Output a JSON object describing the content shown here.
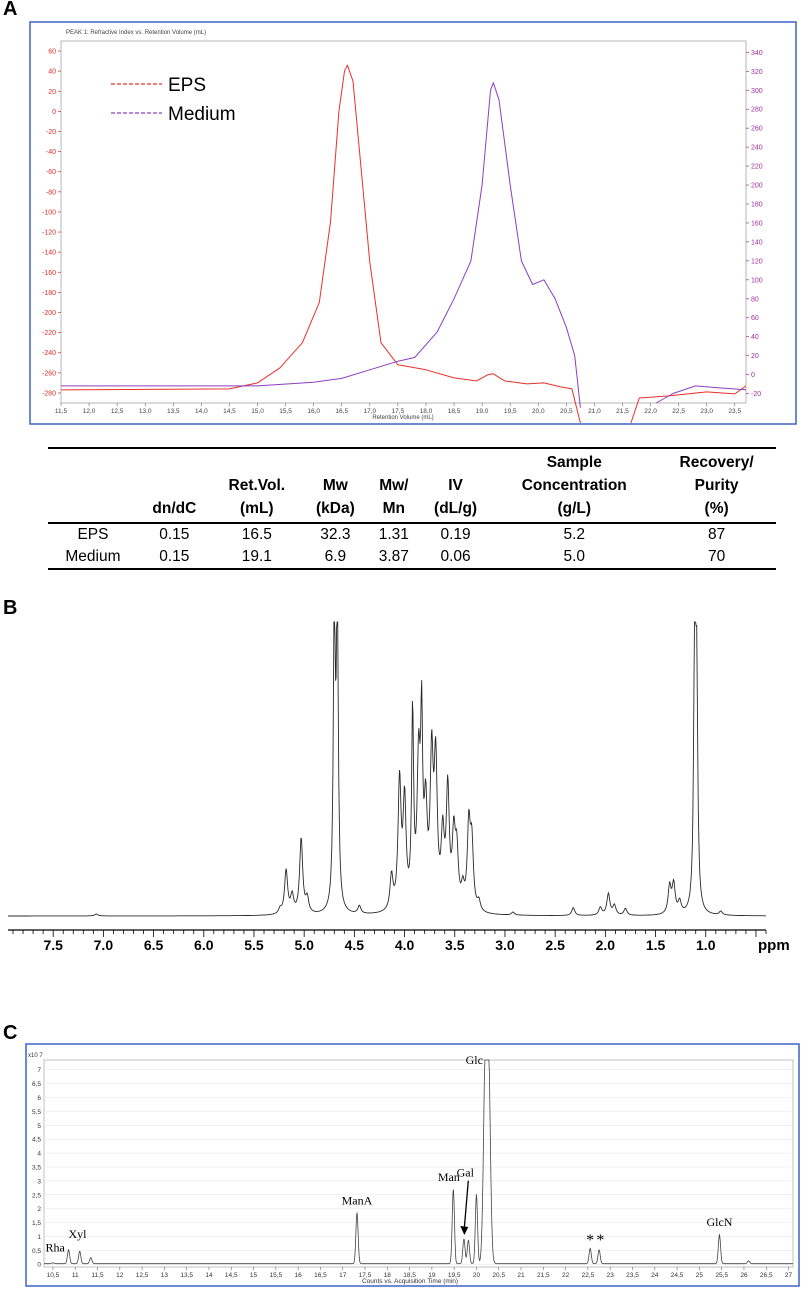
{
  "panels": {
    "a": "A",
    "b": "B",
    "c": "C"
  },
  "chart_data": [
    {
      "id": "A",
      "type": "line",
      "header_text": "PEAK 1: Refractive Index vs. Retention Volume (mL)",
      "xlabel": "Retention Volume (mL)",
      "xlim": [
        11.5,
        23.7
      ],
      "xticks": [
        "11,5",
        "12,0",
        "12,5",
        "13,0",
        "13,5",
        "14,0",
        "14,5",
        "15,0",
        "15,5",
        "16,0",
        "16,5",
        "17,0",
        "17,5",
        "18,0",
        "18,5",
        "19,0",
        "19,5",
        "20,0",
        "20,5",
        "21,0",
        "21,5",
        "22,0",
        "22,5",
        "23,0",
        "23,5"
      ],
      "left_axis": {
        "ylim": [
          -290,
          70
        ],
        "ticks": [
          "60",
          "40",
          "20",
          "0",
          "-20",
          "-40",
          "-60",
          "-80",
          "-100",
          "-120",
          "-140",
          "-160",
          "-180",
          "-200",
          "-220",
          "-240",
          "-260",
          "-280"
        ],
        "color": "#e0302a"
      },
      "right_axis": {
        "ylim": [
          -30,
          352
        ],
        "ticks": [
          "340",
          "320",
          "300",
          "280",
          "260",
          "240",
          "220",
          "200",
          "180",
          "160",
          "140",
          "120",
          "100",
          "80",
          "60",
          "40",
          "20",
          "0",
          "-20"
        ],
        "color": "#a0309c"
      },
      "legend": {
        "placement": "top-left"
      },
      "series": [
        {
          "name": "EPS",
          "color": "#e8302a",
          "axis": "left",
          "points": [
            [
              11.5,
              -277
            ],
            [
              14.5,
              -276
            ],
            [
              15.0,
              -270
            ],
            [
              15.4,
              -255
            ],
            [
              15.8,
              -230
            ],
            [
              16.1,
              -190
            ],
            [
              16.3,
              -110
            ],
            [
              16.45,
              0
            ],
            [
              16.55,
              40
            ],
            [
              16.6,
              46
            ],
            [
              16.7,
              30
            ],
            [
              16.8,
              -30
            ],
            [
              17.0,
              -150
            ],
            [
              17.2,
              -230
            ],
            [
              17.5,
              -252
            ],
            [
              18.0,
              -257
            ],
            [
              18.5,
              -265
            ],
            [
              18.9,
              -268
            ],
            [
              19.1,
              -262
            ],
            [
              19.2,
              -261
            ],
            [
              19.4,
              -268
            ],
            [
              19.8,
              -271
            ],
            [
              20.1,
              -270
            ],
            [
              20.4,
              -274
            ],
            [
              20.6,
              -276
            ],
            [
              20.75,
              -320
            ]
          ]
        },
        {
          "name": "",
          "color": "#e8302a",
          "axis": "left",
          "points": [
            [
              21.65,
              -320
            ],
            [
              21.8,
              -285
            ],
            [
              22.3,
              -283
            ],
            [
              23.0,
              -279
            ],
            [
              23.5,
              -281
            ],
            [
              23.7,
              -273
            ]
          ]
        },
        {
          "name": "Medium",
          "color": "#8c3fc0",
          "axis": "right",
          "points": [
            [
              11.5,
              -12
            ],
            [
              15.0,
              -12
            ],
            [
              16.0,
              -8
            ],
            [
              16.5,
              -4
            ],
            [
              17.0,
              5
            ],
            [
              17.5,
              14
            ],
            [
              17.8,
              18
            ],
            [
              18.2,
              45
            ],
            [
              18.5,
              80
            ],
            [
              18.8,
              120
            ],
            [
              19.0,
              200
            ],
            [
              19.15,
              300
            ],
            [
              19.2,
              308
            ],
            [
              19.3,
              290
            ],
            [
              19.5,
              200
            ],
            [
              19.7,
              120
            ],
            [
              19.9,
              95
            ],
            [
              20.1,
              100
            ],
            [
              20.3,
              80
            ],
            [
              20.5,
              50
            ],
            [
              20.65,
              20
            ],
            [
              20.75,
              -35
            ]
          ]
        },
        {
          "name": "",
          "color": "#8c3fc0",
          "axis": "right",
          "points": [
            [
              22.1,
              -30
            ],
            [
              22.4,
              -20
            ],
            [
              22.8,
              -12
            ],
            [
              23.2,
              -14
            ],
            [
              23.7,
              -16
            ]
          ]
        }
      ]
    },
    {
      "id": "B",
      "type": "line",
      "xlabel": "ppm",
      "xlim": [
        7.95,
        0.4
      ],
      "xticks": [
        "7.5",
        "7.0",
        "6.5",
        "6.0",
        "5.5",
        "5.0",
        "4.5",
        "4.0",
        "3.5",
        "3.0",
        "2.5",
        "2.0",
        "1.5",
        "1.0"
      ],
      "peaks": [
        [
          7.07,
          2
        ],
        [
          5.24,
          5
        ],
        [
          5.18,
          45
        ],
        [
          5.12,
          18
        ],
        [
          5.03,
          77
        ],
        [
          4.97,
          15
        ],
        [
          4.7,
          300
        ],
        [
          4.67,
          300
        ],
        [
          4.45,
          8
        ],
        [
          4.13,
          35
        ],
        [
          4.05,
          130
        ],
        [
          4.0,
          108
        ],
        [
          3.92,
          195
        ],
        [
          3.86,
          145
        ],
        [
          3.83,
          172
        ],
        [
          3.79,
          95
        ],
        [
          3.73,
          148
        ],
        [
          3.69,
          143
        ],
        [
          3.62,
          70
        ],
        [
          3.57,
          120
        ],
        [
          3.51,
          70
        ],
        [
          3.48,
          55
        ],
        [
          3.42,
          20
        ],
        [
          3.36,
          85
        ],
        [
          3.33,
          65
        ],
        [
          3.26,
          10
        ],
        [
          2.92,
          3
        ],
        [
          2.32,
          8
        ],
        [
          2.05,
          8
        ],
        [
          1.97,
          22
        ],
        [
          1.91,
          10
        ],
        [
          1.8,
          7
        ],
        [
          1.36,
          28
        ],
        [
          1.32,
          30
        ],
        [
          1.26,
          12
        ],
        [
          1.11,
          280
        ],
        [
          1.09,
          220
        ],
        [
          0.85,
          4
        ]
      ]
    },
    {
      "id": "C",
      "type": "line",
      "y_unit": "x10 7",
      "xlabel": "Counts vs. Acquisition Time (min)",
      "xlim": [
        10.3,
        27.1
      ],
      "xticks": [
        "10,5",
        "11",
        "11,5",
        "12",
        "12,5",
        "13",
        "13,5",
        "14",
        "14,5",
        "15",
        "15,5",
        "16",
        "16,5",
        "17",
        "17,5",
        "18",
        "18,5",
        "19",
        "19,5",
        "20",
        "20,5",
        "21",
        "21,5",
        "22",
        "22,5",
        "23",
        "23,5",
        "24",
        "24,5",
        "25",
        "25,5",
        "26",
        "26,5",
        "27"
      ],
      "ylim": [
        -0.1,
        7.35
      ],
      "yticks": [
        "7",
        "6,5",
        "6",
        "5,5",
        "5",
        "4,5",
        "4",
        "3,5",
        "3",
        "2,5",
        "2",
        "1,5",
        "1",
        "0,5",
        "0"
      ],
      "peaks": [
        [
          10.5,
          0.03
        ],
        [
          10.85,
          0.5
        ],
        [
          11.1,
          0.45
        ],
        [
          11.35,
          0.22
        ],
        [
          17.32,
          1.85
        ],
        [
          19.48,
          2.7
        ],
        [
          19.72,
          0.9
        ],
        [
          19.82,
          0.85
        ],
        [
          20.0,
          2.5
        ],
        [
          20.2,
          6.9
        ],
        [
          20.27,
          6.9
        ],
        [
          22.55,
          0.55
        ],
        [
          22.75,
          0.5
        ],
        [
          25.45,
          1.05
        ],
        [
          26.1,
          0.1
        ]
      ],
      "annotations": [
        {
          "label": "Rha",
          "x": 10.55,
          "y": 0.45
        },
        {
          "label": "Xyl",
          "x": 11.05,
          "y": 0.95
        },
        {
          "label": "ManA",
          "x": 17.32,
          "y": 2.15
        },
        {
          "label": "Man",
          "x": 19.38,
          "y": 3.0
        },
        {
          "label": "Gal",
          "x": 19.75,
          "y": 3.15
        },
        {
          "label": "Glc",
          "x": 19.95,
          "y": 7.2
        },
        {
          "label": "*",
          "x": 22.55,
          "y": 0.7
        },
        {
          "label": "*",
          "x": 22.78,
          "y": 0.7
        },
        {
          "label": "GlcN",
          "x": 25.45,
          "y": 1.38
        }
      ]
    }
  ],
  "table": {
    "headers": [
      [
        ""
      ],
      [
        "dn/dC"
      ],
      [
        "Ret.Vol.",
        "(mL)"
      ],
      [
        "Mw",
        "(kDa)"
      ],
      [
        "Mw/",
        "Mn"
      ],
      [
        "IV",
        "(dL/g)"
      ],
      [
        "Sample",
        "Concentration",
        "(g/L)"
      ],
      [
        "Recovery/",
        "Purity",
        "(%)"
      ]
    ],
    "rows": [
      [
        "EPS",
        "0.15",
        "16.5",
        "32.3",
        "1.31",
        "0.19",
        "5.2",
        "87"
      ],
      [
        "Medium",
        "0.15",
        "19.1",
        "6.9",
        "3.87",
        "0.06",
        "5.0",
        "70"
      ]
    ]
  }
}
